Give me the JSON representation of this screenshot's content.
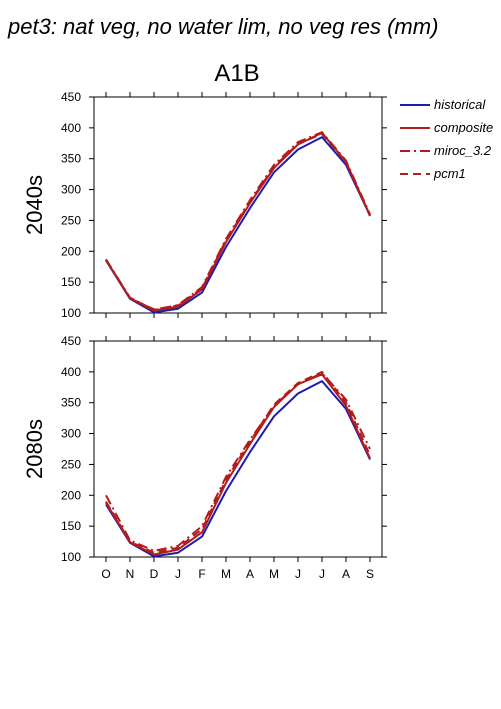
{
  "title": "pet3: nat veg, no water lim, no veg res (mm)",
  "scenario": "A1B",
  "colors": {
    "historical": "#1c1cb4",
    "model": "#b41c1c"
  },
  "legend": {
    "historical": "historical",
    "composite": "composite",
    "miroc": "miroc_3.2",
    "pcm1": "pcm1"
  },
  "chart_data": [
    {
      "type": "line",
      "row_label": "2040s",
      "x": [
        "O",
        "N",
        "D",
        "J",
        "F",
        "M",
        "A",
        "M",
        "J",
        "J",
        "A",
        "S"
      ],
      "ylim": [
        100,
        450
      ],
      "yticks": [
        100,
        150,
        200,
        250,
        300,
        350,
        400,
        450
      ],
      "series": [
        {
          "name": "historical",
          "style": "solid",
          "color_key": "historical",
          "values": [
            185,
            123,
            101,
            107,
            133,
            207,
            270,
            328,
            365,
            385,
            340,
            258
          ]
        },
        {
          "name": "composite",
          "style": "solid",
          "color_key": "model",
          "values": [
            186,
            124,
            104,
            110,
            138,
            215,
            278,
            335,
            373,
            392,
            345,
            258
          ]
        },
        {
          "name": "miroc_3.2",
          "style": "dashdot",
          "color_key": "model",
          "values": [
            187,
            125,
            105,
            113,
            142,
            220,
            283,
            340,
            377,
            393,
            347,
            260
          ]
        },
        {
          "name": "pcm1",
          "style": "dash",
          "color_key": "model",
          "values": [
            186,
            124,
            106,
            112,
            140,
            218,
            280,
            337,
            374,
            390,
            344,
            257
          ]
        }
      ]
    },
    {
      "type": "line",
      "row_label": "2080s",
      "x": [
        "O",
        "N",
        "D",
        "J",
        "F",
        "M",
        "A",
        "M",
        "J",
        "J",
        "A",
        "S"
      ],
      "ylim": [
        100,
        450
      ],
      "yticks": [
        100,
        150,
        200,
        250,
        300,
        350,
        400,
        450
      ],
      "series": [
        {
          "name": "historical",
          "style": "solid",
          "color_key": "historical",
          "values": [
            185,
            123,
            101,
            107,
            133,
            207,
            270,
            328,
            365,
            385,
            340,
            258
          ]
        },
        {
          "name": "composite",
          "style": "solid",
          "color_key": "model",
          "values": [
            188,
            124,
            104,
            112,
            140,
            220,
            283,
            343,
            380,
            396,
            345,
            260
          ]
        },
        {
          "name": "miroc_3.2",
          "style": "dashdot",
          "color_key": "model",
          "values": [
            200,
            127,
            110,
            118,
            150,
            230,
            290,
            345,
            380,
            398,
            355,
            275
          ]
        },
        {
          "name": "pcm1",
          "style": "dash",
          "color_key": "model",
          "values": [
            190,
            125,
            107,
            115,
            145,
            225,
            287,
            347,
            382,
            400,
            350,
            265
          ]
        }
      ]
    }
  ]
}
